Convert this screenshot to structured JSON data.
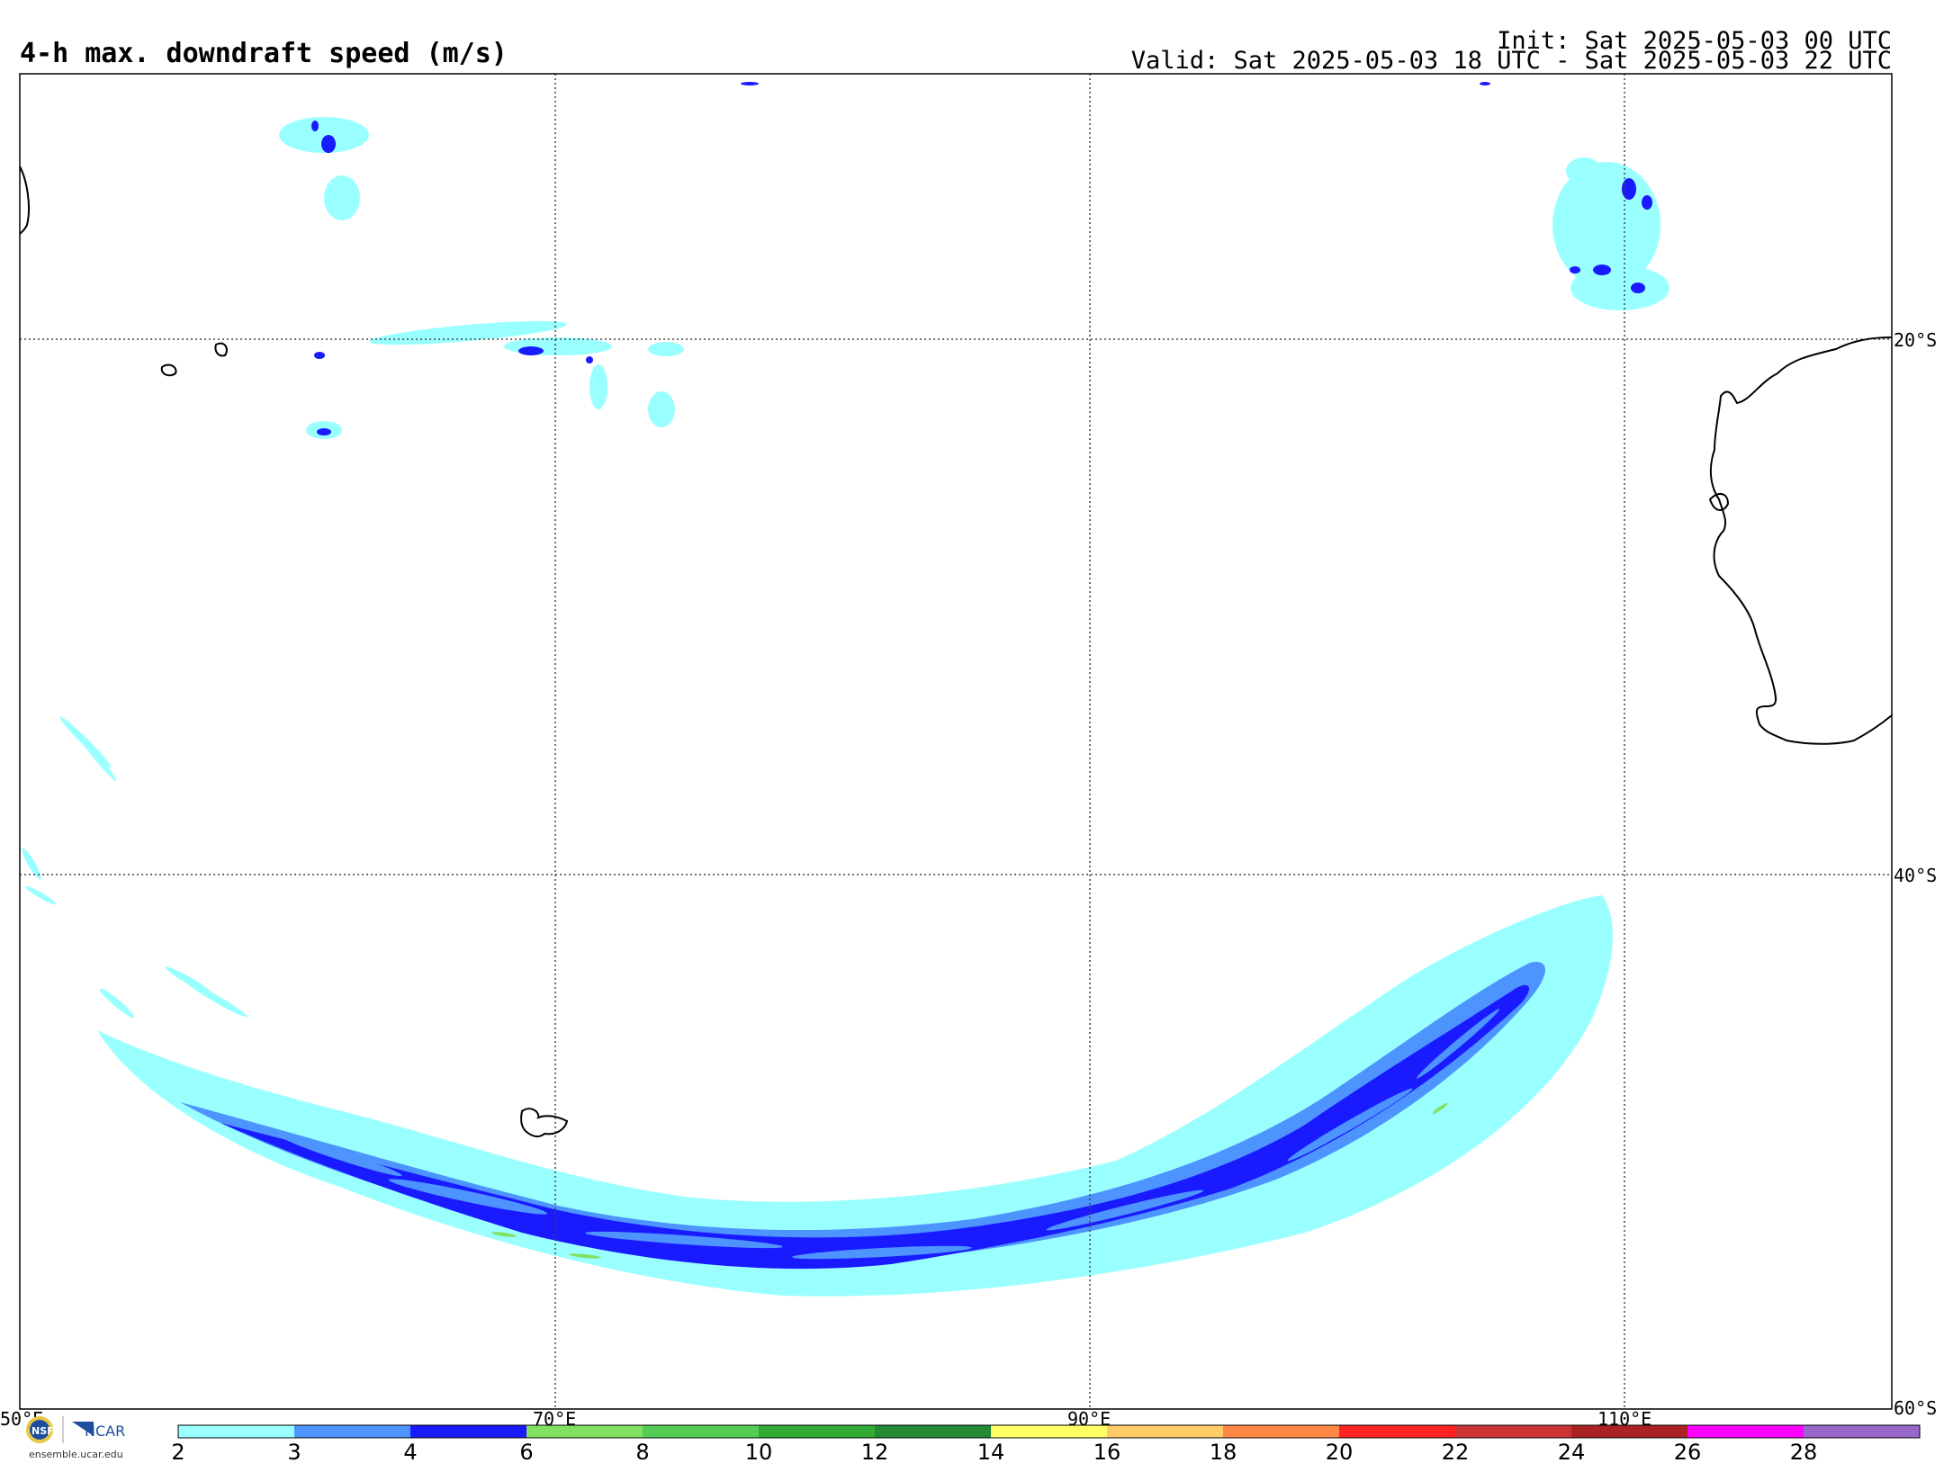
{
  "header": {
    "title": "4-h max. downdraft speed (m/s)",
    "init": "Init: Sat 2025-05-03 00 UTC",
    "valid": "Valid: Sat 2025-05-03 18 UTC - Sat 2025-05-03 22 UTC"
  },
  "map": {
    "lon_labels": [
      "50°E",
      "70°E",
      "90°E",
      "110°E"
    ],
    "lat_labels": [
      "20°S",
      "40°S",
      "60°S"
    ],
    "grid_style": "dotted"
  },
  "colorbar": {
    "ticks": [
      "2",
      "3",
      "4",
      "6",
      "8",
      "10",
      "12",
      "14",
      "16",
      "18",
      "20",
      "22",
      "24",
      "26",
      "28"
    ],
    "colors": [
      "#99ffff",
      "#4d94ff",
      "#1a1aff",
      "#80e060",
      "#55cc55",
      "#33aa33",
      "#228b33",
      "#ffff66",
      "#ffcc66",
      "#ff8844",
      "#ff2222",
      "#cc3333",
      "#aa2222",
      "#ff00ff",
      "#9966cc"
    ]
  },
  "field": {
    "colors": {
      "light": "#99ffff",
      "medium": "#4d94ff",
      "dark": "#1a1aff",
      "green": "#80e060"
    }
  },
  "logo": {
    "text": "ensemble.ucar.edu",
    "ncar": "NCAR",
    "nsf": "NSF"
  }
}
